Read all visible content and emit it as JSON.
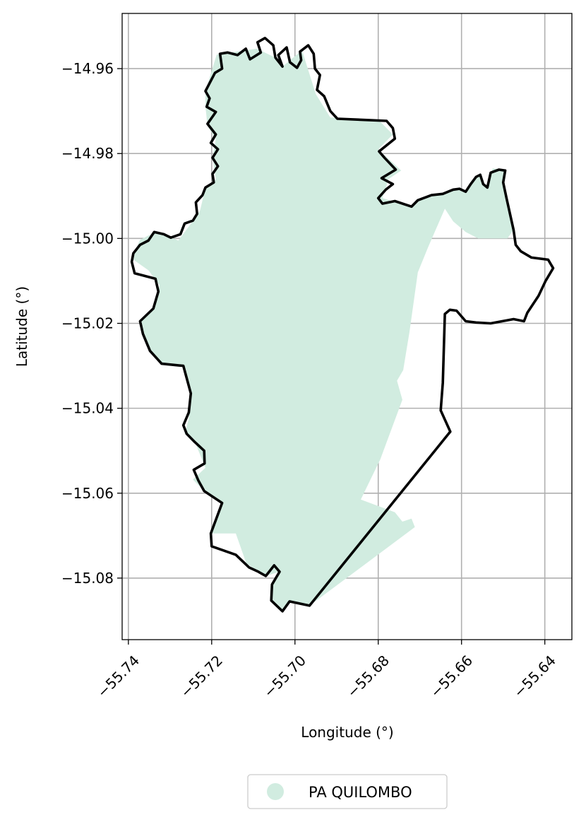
{
  "chart_data": {
    "type": "map",
    "xlabel": "Longitude (°)",
    "ylabel": "Latitude (°)",
    "xlim": [
      -55.7415,
      -55.6335
    ],
    "ylim": [
      -15.0945,
      -14.947
    ],
    "xticks": [
      {
        "value": -55.74,
        "label": "−55.74"
      },
      {
        "value": -55.72,
        "label": "−55.72"
      },
      {
        "value": -55.7,
        "label": "−55.70"
      },
      {
        "value": -55.68,
        "label": "−55.68"
      },
      {
        "value": -55.66,
        "label": "−55.66"
      },
      {
        "value": -55.64,
        "label": "−55.64"
      }
    ],
    "yticks": [
      {
        "value": -14.96,
        "label": "−14.96"
      },
      {
        "value": -14.98,
        "label": "−14.98"
      },
      {
        "value": -15.0,
        "label": "−15.00"
      },
      {
        "value": -15.02,
        "label": "−15.02"
      },
      {
        "value": -15.04,
        "label": "−15.04"
      },
      {
        "value": -15.06,
        "label": "−15.06"
      },
      {
        "value": -15.08,
        "label": "−15.08"
      }
    ],
    "grid": true,
    "legend": {
      "placement": "bottom-center",
      "entries": [
        {
          "name": "PA QUILOMBO",
          "color": "#d1ece0"
        }
      ]
    },
    "layers": [
      {
        "name": "PA QUILOMBO",
        "role": "settlement-area",
        "fill": "#d1ece0",
        "coords": [
          [
            -55.7215,
            -14.9653
          ],
          [
            -55.7188,
            -14.9567
          ],
          [
            -55.7092,
            -14.9553
          ],
          [
            -55.7047,
            -14.9574
          ],
          [
            -55.703,
            -14.9595
          ],
          [
            -55.6983,
            -14.9557
          ],
          [
            -55.695,
            -14.966
          ],
          [
            -55.6915,
            -14.9715
          ],
          [
            -55.68,
            -14.972
          ],
          [
            -55.6765,
            -14.9755
          ],
          [
            -55.68,
            -14.979
          ],
          [
            -55.6745,
            -14.984
          ],
          [
            -55.6775,
            -14.986
          ],
          [
            -55.679,
            -14.9905
          ],
          [
            -55.6725,
            -14.9925
          ],
          [
            -55.6705,
            -14.991
          ],
          [
            -55.6645,
            -14.9895
          ],
          [
            -55.6605,
            -14.9883
          ],
          [
            -55.659,
            -14.989
          ],
          [
            -55.6575,
            -14.987
          ],
          [
            -55.656,
            -14.985
          ],
          [
            -55.654,
            -14.9878
          ],
          [
            -55.6525,
            -14.9835
          ],
          [
            -55.6495,
            -14.9838
          ],
          [
            -55.6502,
            -14.987
          ],
          [
            -55.649,
            -14.9905
          ],
          [
            -55.6475,
            -14.998
          ],
          [
            -55.649,
            -15.0
          ],
          [
            -55.656,
            -15.0
          ],
          [
            -55.659,
            -14.9985
          ],
          [
            -55.662,
            -14.996
          ],
          [
            -55.664,
            -14.993
          ],
          [
            -55.668,
            -15.002
          ],
          [
            -55.6705,
            -15.008
          ],
          [
            -55.6725,
            -15.022
          ],
          [
            -55.674,
            -15.031
          ],
          [
            -55.6755,
            -15.0335
          ],
          [
            -55.6742,
            -15.038
          ],
          [
            -55.6795,
            -15.052
          ],
          [
            -55.6842,
            -15.0615
          ],
          [
            -55.676,
            -15.0645
          ],
          [
            -55.6742,
            -15.0667
          ],
          [
            -55.672,
            -15.066
          ],
          [
            -55.6712,
            -15.068
          ],
          [
            -55.6965,
            -15.0865
          ],
          [
            -55.7013,
            -15.0855
          ],
          [
            -55.703,
            -15.0878
          ],
          [
            -55.7057,
            -15.0853
          ],
          [
            -55.7055,
            -15.0815
          ],
          [
            -55.7037,
            -15.0785
          ],
          [
            -55.707,
            -15.0795
          ],
          [
            -55.7088,
            -15.0785
          ],
          [
            -55.7117,
            -15.0765
          ],
          [
            -55.7142,
            -15.0695
          ],
          [
            -55.7202,
            -15.0695
          ],
          [
            -55.7175,
            -15.0623
          ],
          [
            -55.7218,
            -15.0595
          ],
          [
            -55.7245,
            -15.0568
          ],
          [
            -55.7215,
            -15.054
          ],
          [
            -55.724,
            -15.048
          ],
          [
            -55.7265,
            -15.046
          ],
          [
            -55.7255,
            -15.0425
          ],
          [
            -55.725,
            -15.0365
          ],
          [
            -55.7265,
            -15.03
          ],
          [
            -55.732,
            -15.0295
          ],
          [
            -55.7348,
            -15.0265
          ],
          [
            -55.7372,
            -15.0195
          ],
          [
            -55.734,
            -15.0165
          ],
          [
            -55.7325,
            -15.011
          ],
          [
            -55.7352,
            -15.0075
          ],
          [
            -55.7388,
            -15.005
          ],
          [
            -55.7385,
            -15.003
          ],
          [
            -55.7372,
            -15.0003
          ],
          [
            -55.7335,
            -14.9985
          ],
          [
            -55.7315,
            -14.999
          ],
          [
            -55.728,
            -15.0005
          ],
          [
            -55.7255,
            -14.9972
          ],
          [
            -55.7228,
            -14.9935
          ],
          [
            -55.7215,
            -14.988
          ],
          [
            -55.719,
            -14.986
          ],
          [
            -55.7198,
            -14.981
          ],
          [
            -55.719,
            -14.9765
          ],
          [
            -55.721,
            -14.9735
          ],
          [
            -55.7215,
            -14.969
          ]
        ]
      },
      {
        "name": "municipality-boundary",
        "role": "boundary",
        "stroke": "#000000",
        "coords": [
          [
            -55.7215,
            -14.9653
          ],
          [
            -55.7192,
            -14.961
          ],
          [
            -55.7175,
            -14.96
          ],
          [
            -55.718,
            -14.9565
          ],
          [
            -55.7162,
            -14.9562
          ],
          [
            -55.7138,
            -14.9568
          ],
          [
            -55.7118,
            -14.9553
          ],
          [
            -55.7108,
            -14.9578
          ],
          [
            -55.7082,
            -14.9562
          ],
          [
            -55.709,
            -14.9538
          ],
          [
            -55.7072,
            -14.9528
          ],
          [
            -55.7052,
            -14.9545
          ],
          [
            -55.7047,
            -14.9574
          ],
          [
            -55.703,
            -14.9595
          ],
          [
            -55.704,
            -14.9568
          ],
          [
            -55.702,
            -14.955
          ],
          [
            -55.7012,
            -14.9585
          ],
          [
            -55.6995,
            -14.9598
          ],
          [
            -55.6985,
            -14.958
          ],
          [
            -55.6988,
            -14.956
          ],
          [
            -55.6968,
            -14.9545
          ],
          [
            -55.6955,
            -14.9565
          ],
          [
            -55.6952,
            -14.96
          ],
          [
            -55.694,
            -14.9615
          ],
          [
            -55.6947,
            -14.965
          ],
          [
            -55.693,
            -14.9665
          ],
          [
            -55.6915,
            -14.97
          ],
          [
            -55.6898,
            -14.9718
          ],
          [
            -55.678,
            -14.9723
          ],
          [
            -55.6765,
            -14.974
          ],
          [
            -55.676,
            -14.9765
          ],
          [
            -55.6798,
            -14.9795
          ],
          [
            -55.6785,
            -14.981
          ],
          [
            -55.6758,
            -14.9838
          ],
          [
            -55.6792,
            -14.9858
          ],
          [
            -55.6765,
            -14.9872
          ],
          [
            -55.6782,
            -14.9885
          ],
          [
            -55.68,
            -14.9905
          ],
          [
            -55.679,
            -14.9918
          ],
          [
            -55.676,
            -14.9912
          ],
          [
            -55.672,
            -14.9925
          ],
          [
            -55.6705,
            -14.991
          ],
          [
            -55.6672,
            -14.9898
          ],
          [
            -55.6645,
            -14.9895
          ],
          [
            -55.662,
            -14.9885
          ],
          [
            -55.6605,
            -14.9883
          ],
          [
            -55.659,
            -14.989
          ],
          [
            -55.6578,
            -14.9872
          ],
          [
            -55.6565,
            -14.9855
          ],
          [
            -55.6555,
            -14.985
          ],
          [
            -55.6548,
            -14.9872
          ],
          [
            -55.6538,
            -14.988
          ],
          [
            -55.653,
            -14.9845
          ],
          [
            -55.651,
            -14.9838
          ],
          [
            -55.6495,
            -14.984
          ],
          [
            -55.65,
            -14.9868
          ],
          [
            -55.6492,
            -14.9905
          ],
          [
            -55.6475,
            -14.998
          ],
          [
            -55.647,
            -15.0015
          ],
          [
            -55.6458,
            -15.003
          ],
          [
            -55.6432,
            -15.0045
          ],
          [
            -55.6392,
            -15.005
          ],
          [
            -55.638,
            -15.007
          ],
          [
            -55.6398,
            -15.01
          ],
          [
            -55.6415,
            -15.0135
          ],
          [
            -55.6442,
            -15.0175
          ],
          [
            -55.645,
            -15.0195
          ],
          [
            -55.6475,
            -15.019
          ],
          [
            -55.653,
            -15.02
          ],
          [
            -55.6565,
            -15.0198
          ],
          [
            -55.659,
            -15.0195
          ],
          [
            -55.6612,
            -15.017
          ],
          [
            -55.6628,
            -15.0168
          ],
          [
            -55.664,
            -15.0178
          ],
          [
            -55.6645,
            -15.034
          ],
          [
            -55.665,
            -15.0405
          ],
          [
            -55.6627,
            -15.0455
          ],
          [
            -55.6965,
            -15.0865
          ],
          [
            -55.7013,
            -15.0855
          ],
          [
            -55.703,
            -15.0878
          ],
          [
            -55.7057,
            -15.0853
          ],
          [
            -55.7055,
            -15.0815
          ],
          [
            -55.7037,
            -15.0785
          ],
          [
            -55.705,
            -15.077
          ],
          [
            -55.707,
            -15.0795
          ],
          [
            -55.7088,
            -15.0785
          ],
          [
            -55.711,
            -15.0775
          ],
          [
            -55.7142,
            -15.0745
          ],
          [
            -55.72,
            -15.0725
          ],
          [
            -55.7202,
            -15.0695
          ],
          [
            -55.7175,
            -15.0623
          ],
          [
            -55.7218,
            -15.0595
          ],
          [
            -55.7232,
            -15.057
          ],
          [
            -55.7243,
            -15.0545
          ],
          [
            -55.7217,
            -15.053
          ],
          [
            -55.7218,
            -15.05
          ],
          [
            -55.724,
            -15.048
          ],
          [
            -55.726,
            -15.046
          ],
          [
            -55.7268,
            -15.044
          ],
          [
            -55.7255,
            -15.041
          ],
          [
            -55.725,
            -15.0365
          ],
          [
            -55.7268,
            -15.03
          ],
          [
            -55.732,
            -15.0295
          ],
          [
            -55.7348,
            -15.0265
          ],
          [
            -55.7365,
            -15.0225
          ],
          [
            -55.7372,
            -15.0195
          ],
          [
            -55.734,
            -15.0165
          ],
          [
            -55.7328,
            -15.0125
          ],
          [
            -55.7335,
            -15.0095
          ],
          [
            -55.7385,
            -15.0082
          ],
          [
            -55.7392,
            -15.0055
          ],
          [
            -55.7388,
            -15.0035
          ],
          [
            -55.7372,
            -15.0015
          ],
          [
            -55.7352,
            -15.0005
          ],
          [
            -55.7338,
            -14.9985
          ],
          [
            -55.7315,
            -14.999
          ],
          [
            -55.7298,
            -14.9998
          ],
          [
            -55.7275,
            -14.999
          ],
          [
            -55.7265,
            -14.9965
          ],
          [
            -55.7245,
            -14.9958
          ],
          [
            -55.7235,
            -14.9942
          ],
          [
            -55.7238,
            -14.9915
          ],
          [
            -55.7222,
            -14.9898
          ],
          [
            -55.7215,
            -14.988
          ],
          [
            -55.7195,
            -14.9868
          ],
          [
            -55.7198,
            -14.9848
          ],
          [
            -55.7185,
            -14.983
          ],
          [
            -55.7198,
            -14.981
          ],
          [
            -55.7185,
            -14.979
          ],
          [
            -55.7202,
            -14.9775
          ],
          [
            -55.719,
            -14.9755
          ],
          [
            -55.721,
            -14.973
          ],
          [
            -55.719,
            -14.9702
          ],
          [
            -55.7212,
            -14.969
          ],
          [
            -55.7205,
            -14.967
          ]
        ]
      }
    ]
  }
}
